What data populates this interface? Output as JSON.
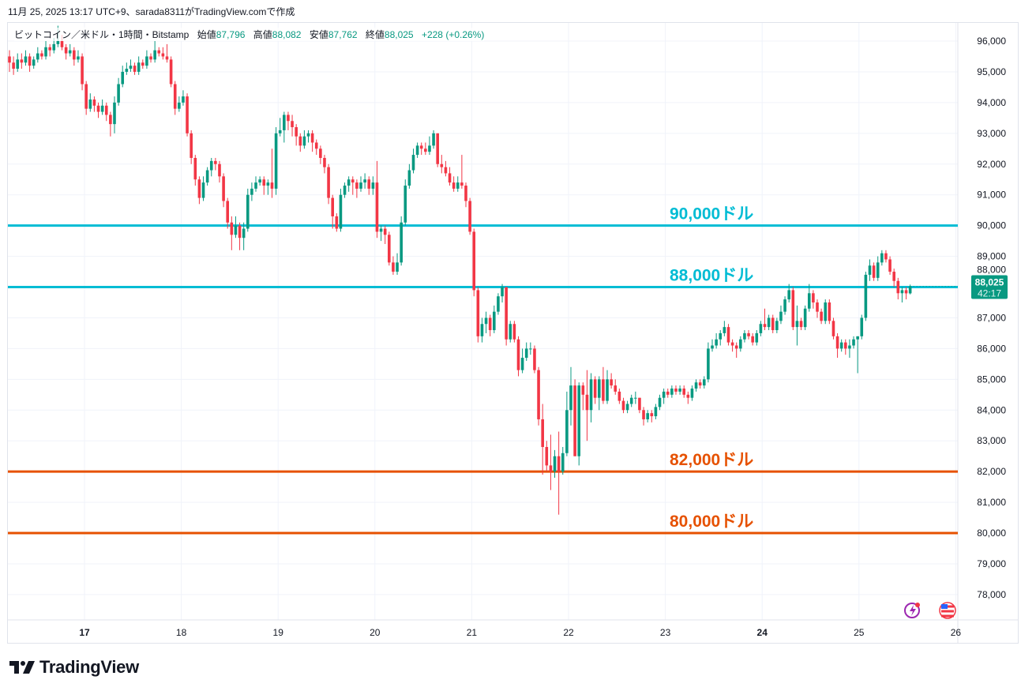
{
  "caption": "11月 25, 2025 13:17 UTC+9、sarada8311がTradingView.comで作成",
  "legend": {
    "symbol": "ビットコイン／米ドル・1時間・Bitstamp",
    "open_label": "始値",
    "open": "87,796",
    "high_label": "高値",
    "high": "88,082",
    "low_label": "安値",
    "low": "87,762",
    "close_label": "終値",
    "close": "88,025",
    "change": "+228 (+0.26%)"
  },
  "last_price": {
    "price": "88,025",
    "countdown": "42:17",
    "color": "#089981"
  },
  "brand": {
    "name": "TradingView"
  },
  "icons": [
    "lightning-icon",
    "us-flag-icon"
  ],
  "colors": {
    "up": "#089981",
    "down": "#f23645",
    "resistance": "#00bcd4",
    "support": "#e65100"
  },
  "chart_data": {
    "type": "candlestick",
    "interval": "1時間",
    "ylim": [
      77000,
      96800
    ],
    "y_ticks": [
      "96,000",
      "95,000",
      "94,000",
      "93,000",
      "92,000",
      "91,000",
      "90,000",
      "89,000",
      "88,000",
      "87,000",
      "86,000",
      "85,000",
      "84,000",
      "83,000",
      "82,000",
      "81,000",
      "80,000",
      "79,000",
      "78,000"
    ],
    "x_ticks": [
      "17",
      "18",
      "19",
      "20",
      "21",
      "22",
      "23",
      "24",
      "25",
      "26"
    ],
    "x_ticks_bold": [
      "17",
      "24"
    ],
    "grid": true,
    "levels": [
      {
        "price": 90000,
        "label": "90,000ドル",
        "color": "#00bcd4"
      },
      {
        "price": 88000,
        "label": "88,000ドル",
        "color": "#00bcd4"
      },
      {
        "price": 82000,
        "label": "82,000ドル",
        "color": "#e65100"
      },
      {
        "price": 80000,
        "label": "80,000ドル",
        "color": "#e65100"
      }
    ],
    "ohlc": [
      [
        95500,
        95700,
        95000,
        95300
      ],
      [
        95300,
        95500,
        94900,
        95100
      ],
      [
        95100,
        95600,
        95000,
        95400
      ],
      [
        95400,
        95600,
        95100,
        95300
      ],
      [
        95300,
        95700,
        95200,
        95500
      ],
      [
        95500,
        95600,
        95000,
        95200
      ],
      [
        95200,
        95500,
        95100,
        95400
      ],
      [
        95400,
        95800,
        95300,
        95600
      ],
      [
        95600,
        95700,
        95400,
        95500
      ],
      [
        95500,
        96000,
        95400,
        95800
      ],
      [
        95800,
        95900,
        95500,
        95700
      ],
      [
        95700,
        96100,
        95600,
        95900
      ],
      [
        95900,
        96500,
        95800,
        96000
      ],
      [
        96000,
        96200,
        95700,
        95800
      ],
      [
        95800,
        95900,
        95400,
        95600
      ],
      [
        95600,
        95900,
        95500,
        95700
      ],
      [
        95700,
        95800,
        95200,
        95400
      ],
      [
        95400,
        95700,
        95300,
        95500
      ],
      [
        95500,
        95600,
        94400,
        94600
      ],
      [
        94600,
        94700,
        93600,
        93800
      ],
      [
        93800,
        94300,
        93700,
        94100
      ],
      [
        94100,
        94200,
        93700,
        93900
      ],
      [
        93900,
        94000,
        93500,
        93700
      ],
      [
        93700,
        94100,
        93600,
        93900
      ],
      [
        93900,
        94000,
        93400,
        93600
      ],
      [
        93600,
        93700,
        92900,
        93300
      ],
      [
        93300,
        94200,
        93000,
        94000
      ],
      [
        94000,
        94800,
        93900,
        94600
      ],
      [
        94600,
        95200,
        94500,
        95000
      ],
      [
        95000,
        95300,
        94900,
        95100
      ],
      [
        95100,
        95400,
        95000,
        95200
      ],
      [
        95200,
        95300,
        94900,
        95000
      ],
      [
        95000,
        95500,
        94900,
        95300
      ],
      [
        95300,
        95400,
        95100,
        95200
      ],
      [
        95200,
        95700,
        95100,
        95500
      ],
      [
        95500,
        95600,
        95300,
        95400
      ],
      [
        95400,
        96000,
        95300,
        95700
      ],
      [
        95700,
        95800,
        95500,
        95600
      ],
      [
        95600,
        95800,
        95400,
        95500
      ],
      [
        95500,
        95900,
        95300,
        95400
      ],
      [
        95400,
        95500,
        94500,
        94600
      ],
      [
        94600,
        94700,
        93600,
        93800
      ],
      [
        93800,
        94200,
        93700,
        94000
      ],
      [
        94000,
        94400,
        93900,
        94200
      ],
      [
        94200,
        94300,
        92900,
        93000
      ],
      [
        93000,
        93100,
        92000,
        92200
      ],
      [
        92200,
        92300,
        91300,
        91500
      ],
      [
        91500,
        91600,
        90700,
        90900
      ],
      [
        90900,
        91600,
        90800,
        91400
      ],
      [
        91400,
        91900,
        91300,
        91800
      ],
      [
        91800,
        92200,
        91600,
        92100
      ],
      [
        92100,
        92200,
        91800,
        92000
      ],
      [
        92000,
        92100,
        91400,
        91600
      ],
      [
        91600,
        91700,
        90600,
        90800
      ],
      [
        90800,
        90900,
        89900,
        90100
      ],
      [
        90100,
        90300,
        89200,
        89700
      ],
      [
        89700,
        90300,
        89600,
        90000
      ],
      [
        90000,
        90100,
        89200,
        89600
      ],
      [
        89600,
        90100,
        89200,
        89900
      ],
      [
        89900,
        91200,
        89800,
        91000
      ],
      [
        91000,
        91400,
        90800,
        91200
      ],
      [
        91200,
        91600,
        91100,
        91400
      ],
      [
        91400,
        91600,
        91300,
        91500
      ],
      [
        91500,
        91600,
        91000,
        91300
      ],
      [
        91300,
        91500,
        91000,
        91400
      ],
      [
        91400,
        92500,
        90900,
        91200
      ],
      [
        91200,
        93200,
        91000,
        93000
      ],
      [
        93000,
        93500,
        92900,
        93100
      ],
      [
        93100,
        93700,
        92700,
        93600
      ],
      [
        93600,
        93700,
        93100,
        93400
      ],
      [
        93400,
        93600,
        92900,
        93200
      ],
      [
        93200,
        93300,
        92600,
        92900
      ],
      [
        92900,
        93000,
        92400,
        92600
      ],
      [
        92600,
        93100,
        92500,
        92900
      ],
      [
        92900,
        93100,
        92700,
        93000
      ],
      [
        93000,
        93100,
        92400,
        92700
      ],
      [
        92700,
        92800,
        92300,
        92500
      ],
      [
        92500,
        92600,
        92000,
        92200
      ],
      [
        92200,
        92300,
        91700,
        91900
      ],
      [
        91900,
        92000,
        90700,
        90900
      ],
      [
        90900,
        91000,
        89900,
        90300
      ],
      [
        90300,
        90400,
        89800,
        89900
      ],
      [
        89900,
        91200,
        89800,
        91000
      ],
      [
        91000,
        91400,
        90900,
        91300
      ],
      [
        91300,
        91600,
        91100,
        91500
      ],
      [
        91500,
        91600,
        91000,
        91400
      ],
      [
        91400,
        91500,
        90900,
        91200
      ],
      [
        91200,
        91600,
        91100,
        91400
      ],
      [
        91400,
        91700,
        91200,
        91500
      ],
      [
        91500,
        91600,
        91000,
        91200
      ],
      [
        91200,
        91600,
        91000,
        91400
      ],
      [
        91400,
        92100,
        89600,
        89800
      ],
      [
        89800,
        90000,
        89500,
        89900
      ],
      [
        89900,
        90000,
        89400,
        89700
      ],
      [
        89700,
        89800,
        88700,
        88800
      ],
      [
        88800,
        89000,
        88400,
        88500
      ],
      [
        88500,
        89100,
        88400,
        88800
      ],
      [
        88800,
        90300,
        88700,
        90100
      ],
      [
        90100,
        91500,
        90000,
        91300
      ],
      [
        91300,
        92000,
        91200,
        91800
      ],
      [
        91800,
        92500,
        91700,
        92300
      ],
      [
        92300,
        92700,
        92200,
        92600
      ],
      [
        92600,
        92700,
        92300,
        92500
      ],
      [
        92500,
        92700,
        92300,
        92400
      ],
      [
        92400,
        92900,
        92300,
        92600
      ],
      [
        92600,
        93100,
        92500,
        93000
      ],
      [
        93000,
        93000,
        91900,
        92000
      ],
      [
        92000,
        92300,
        91700,
        91900
      ],
      [
        91900,
        92100,
        91600,
        91700
      ],
      [
        91700,
        91900,
        91300,
        91400
      ],
      [
        91400,
        91600,
        91100,
        91200
      ],
      [
        91200,
        91600,
        91100,
        91400
      ],
      [
        91400,
        92300,
        91200,
        91300
      ],
      [
        91300,
        91400,
        90600,
        90800
      ],
      [
        90800,
        90900,
        89700,
        89800
      ],
      [
        89800,
        89900,
        87700,
        87900
      ],
      [
        87900,
        88000,
        86200,
        86400
      ],
      [
        86400,
        87000,
        86200,
        86800
      ],
      [
        86800,
        87200,
        86500,
        87000
      ],
      [
        87000,
        87100,
        86400,
        86600
      ],
      [
        86600,
        87400,
        86500,
        87200
      ],
      [
        87200,
        87800,
        87100,
        87700
      ],
      [
        87700,
        88100,
        87500,
        88000
      ],
      [
        88000,
        88000,
        86100,
        86300
      ],
      [
        86300,
        86900,
        86200,
        86800
      ],
      [
        86800,
        86900,
        86200,
        86300
      ],
      [
        86300,
        86400,
        85100,
        85300
      ],
      [
        85300,
        86000,
        85200,
        85700
      ],
      [
        85700,
        86200,
        85600,
        86000
      ],
      [
        86000,
        86200,
        85800,
        86000
      ],
      [
        86000,
        86100,
        85200,
        85300
      ],
      [
        85300,
        85400,
        83500,
        83700
      ],
      [
        83700,
        84200,
        81900,
        82800
      ],
      [
        82800,
        83000,
        82000,
        82200
      ],
      [
        82200,
        83200,
        81400,
        82000
      ],
      [
        82000,
        82700,
        81800,
        82500
      ],
      [
        82500,
        83300,
        80600,
        82000
      ],
      [
        82000,
        82800,
        81900,
        82600
      ],
      [
        82600,
        84600,
        82500,
        84000
      ],
      [
        84000,
        85400,
        83500,
        84800
      ],
      [
        84800,
        85000,
        82500,
        82500
      ],
      [
        82500,
        84900,
        82200,
        84800
      ],
      [
        84800,
        84900,
        84000,
        84500
      ],
      [
        84500,
        85300,
        83000,
        84000
      ],
      [
        84000,
        85200,
        83600,
        85000
      ],
      [
        85000,
        85100,
        84200,
        84400
      ],
      [
        84400,
        85100,
        84000,
        85000
      ],
      [
        85000,
        85400,
        84200,
        84300
      ],
      [
        84300,
        85300,
        84200,
        85000
      ],
      [
        85000,
        85200,
        84700,
        84800
      ],
      [
        84800,
        85000,
        84500,
        84600
      ],
      [
        84600,
        84700,
        84200,
        84300
      ],
      [
        84300,
        84400,
        83900,
        84000
      ],
      [
        84000,
        84300,
        83900,
        84200
      ],
      [
        84200,
        84500,
        84100,
        84400
      ],
      [
        84400,
        84600,
        84200,
        84400
      ],
      [
        84400,
        84400,
        83900,
        84000
      ],
      [
        84000,
        84100,
        83500,
        83700
      ],
      [
        83700,
        84000,
        83600,
        83900
      ],
      [
        83900,
        84000,
        83600,
        83800
      ],
      [
        83800,
        84200,
        83700,
        84100
      ],
      [
        84100,
        84500,
        84000,
        84400
      ],
      [
        84400,
        84700,
        84200,
        84600
      ],
      [
        84600,
        84700,
        84400,
        84500
      ],
      [
        84500,
        84800,
        84400,
        84700
      ],
      [
        84700,
        84800,
        84500,
        84600
      ],
      [
        84600,
        84800,
        84500,
        84700
      ],
      [
        84700,
        84800,
        84400,
        84500
      ],
      [
        84500,
        84600,
        84200,
        84400
      ],
      [
        84400,
        84800,
        84300,
        84700
      ],
      [
        84700,
        85000,
        84600,
        84900
      ],
      [
        84900,
        85000,
        84700,
        84800
      ],
      [
        84800,
        85100,
        84700,
        85000
      ],
      [
        85000,
        86200,
        84900,
        86000
      ],
      [
        86000,
        86300,
        85900,
        86100
      ],
      [
        86100,
        86500,
        86000,
        86300
      ],
      [
        86300,
        86600,
        86100,
        86500
      ],
      [
        86500,
        86900,
        86400,
        86700
      ],
      [
        86700,
        86800,
        86100,
        86200
      ],
      [
        86200,
        86300,
        85900,
        86100
      ],
      [
        86100,
        86200,
        85700,
        86000
      ],
      [
        86000,
        86400,
        85900,
        86300
      ],
      [
        86300,
        86600,
        86200,
        86500
      ],
      [
        86500,
        86600,
        86300,
        86400
      ],
      [
        86400,
        86500,
        86100,
        86200
      ],
      [
        86200,
        86600,
        86100,
        86500
      ],
      [
        86500,
        86900,
        86400,
        86800
      ],
      [
        86800,
        87300,
        86600,
        86700
      ],
      [
        86700,
        87100,
        86600,
        87000
      ],
      [
        87000,
        87100,
        86500,
        86600
      ],
      [
        86600,
        87000,
        86500,
        86900
      ],
      [
        86900,
        87400,
        86800,
        87200
      ],
      [
        87200,
        87700,
        87100,
        87600
      ],
      [
        87600,
        88100,
        87500,
        87900
      ],
      [
        87900,
        88000,
        86600,
        86700
      ],
      [
        86700,
        87400,
        86100,
        86900
      ],
      [
        86900,
        87000,
        86600,
        86700
      ],
      [
        86700,
        87400,
        86600,
        87300
      ],
      [
        87300,
        88100,
        87200,
        87800
      ],
      [
        87800,
        87900,
        87300,
        87500
      ],
      [
        87500,
        87600,
        87000,
        87200
      ],
      [
        87200,
        87300,
        86800,
        86900
      ],
      [
        86900,
        87600,
        86800,
        87500
      ],
      [
        87500,
        87600,
        86800,
        86900
      ],
      [
        86900,
        87000,
        86300,
        86400
      ],
      [
        86400,
        86500,
        85700,
        86000
      ],
      [
        86000,
        86300,
        85900,
        86200
      ],
      [
        86200,
        86300,
        85800,
        86000
      ],
      [
        86000,
        86300,
        85700,
        86100
      ],
      [
        86100,
        86400,
        86000,
        86300
      ],
      [
        86300,
        86400,
        85200,
        86400
      ],
      [
        86400,
        87100,
        86300,
        87000
      ],
      [
        87000,
        88500,
        86900,
        88400
      ],
      [
        88400,
        88900,
        88200,
        88700
      ],
      [
        88700,
        88800,
        88200,
        88300
      ],
      [
        88300,
        89000,
        88200,
        88800
      ],
      [
        88800,
        89200,
        88700,
        89100
      ],
      [
        89100,
        89200,
        88800,
        88900
      ],
      [
        88900,
        89000,
        88400,
        88500
      ],
      [
        88500,
        88600,
        88000,
        88200
      ],
      [
        88200,
        88300,
        87600,
        87800
      ],
      [
        87800,
        88000,
        87500,
        87900
      ],
      [
        87900,
        88000,
        87600,
        87796
      ],
      [
        87796,
        88082,
        87762,
        88025
      ]
    ]
  }
}
